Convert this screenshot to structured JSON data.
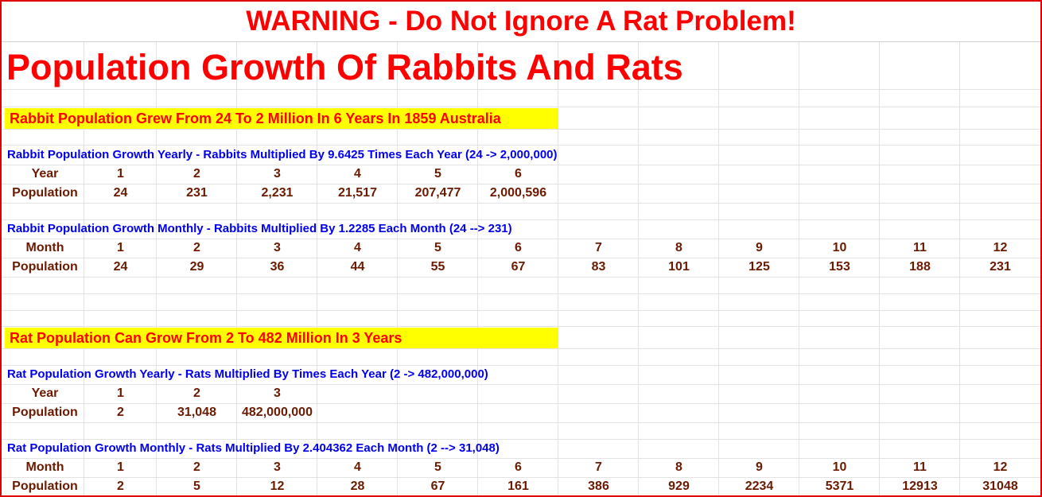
{
  "banner": {
    "text": "WARNING - Do Not Ignore A Rat Problem!"
  },
  "title": "Population Growth Of Rabbits And Rats",
  "rabbits": {
    "headline": "Rabbit Population Grew From 24 To 2 Million In 6 Years In 1859 Australia",
    "yearly": {
      "label": "Rabbit Population Growth Yearly - Rabbits Multiplied By 9.6425 Times Each Year (24 -> 2,000,000)",
      "header_label": "Year",
      "pop_label": "Population",
      "periods": [
        "1",
        "2",
        "3",
        "4",
        "5",
        "6"
      ],
      "values": [
        "24",
        "231",
        "2,231",
        "21,517",
        "207,477",
        "2,000,596"
      ]
    },
    "monthly": {
      "label": "Rabbit Population Growth Monthly - Rabbits Multiplied By 1.2285 Each Month (24 --> 231)",
      "header_label": "Month",
      "pop_label": "Population",
      "periods": [
        "1",
        "2",
        "3",
        "4",
        "5",
        "6",
        "7",
        "8",
        "9",
        "10",
        "11",
        "12"
      ],
      "values": [
        "24",
        "29",
        "36",
        "44",
        "55",
        "67",
        "83",
        "101",
        "125",
        "153",
        "188",
        "231"
      ]
    }
  },
  "rats": {
    "headline": "Rat Population Can Grow From 2 To 482 Million In 3 Years",
    "yearly": {
      "label": "Rat Population Growth Yearly - Rats Multiplied By  Times Each Year (2 -> 482,000,000)",
      "header_label": "Year",
      "pop_label": "Population",
      "periods": [
        "1",
        "2",
        "3"
      ],
      "values": [
        "2",
        "31,048",
        "482,000,000"
      ]
    },
    "monthly": {
      "label": "Rat Population Growth Monthly - Rats Multiplied By 2.404362 Each Month (2 --> 31,048)",
      "header_label": "Month",
      "pop_label": "Population",
      "periods": [
        "1",
        "2",
        "3",
        "4",
        "5",
        "6",
        "7",
        "8",
        "9",
        "10",
        "11",
        "12"
      ],
      "values": [
        "2",
        "5",
        "12",
        "28",
        "67",
        "161",
        "386",
        "929",
        "2234",
        "5371",
        "12913",
        "31048"
      ]
    }
  },
  "colors": {
    "warning": "#ff0000",
    "highlight": "#ffff00",
    "label_blue": "#0000ee",
    "data_brown": "#6b1a00",
    "border": "#e00000"
  }
}
